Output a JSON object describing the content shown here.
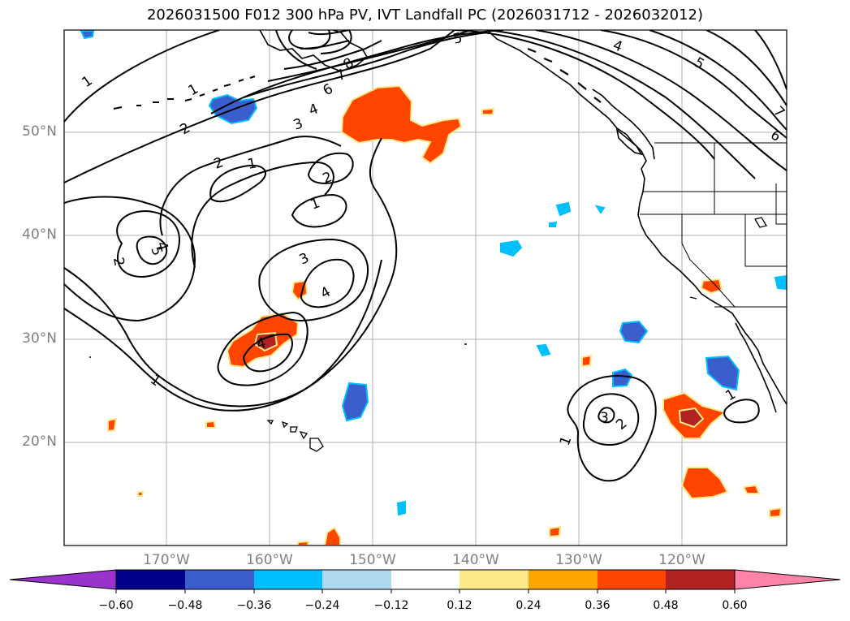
{
  "title": "2026031500 F012 300 hPa PV, IVT Landfall PC (2026031712 - 2026032012)",
  "latitude_labels": [
    "50°N",
    "40°N",
    "30°N",
    "20°N"
  ],
  "longitude_labels": [
    "170°W",
    "160°W",
    "150°W",
    "140°W",
    "130°W",
    "120°W"
  ],
  "pv_contour_labels": [
    "1",
    "2",
    "1",
    "2",
    "3",
    "4",
    "6",
    "7",
    "8",
    "5",
    "4",
    "5",
    "6",
    "7",
    "2",
    "1",
    "2",
    "1",
    "4",
    "5",
    "3",
    "4",
    "4",
    "1",
    "3",
    "2",
    "1",
    "1"
  ],
  "colorbar": {
    "tick_labels": [
      "−0.60",
      "−0.48",
      "−0.36",
      "−0.24",
      "−0.12",
      "0.12",
      "0.24",
      "0.36",
      "0.48",
      "0.60"
    ],
    "colors": [
      "#9933cc",
      "#00008b",
      "#3a5fcd",
      "#00bfff",
      "#add8f0",
      "#ffffff",
      "#fde98a",
      "#ffa500",
      "#ff4500",
      "#b22222",
      "#ff82a9"
    ]
  },
  "shading_colors": {
    "negative_light": "#00bfff",
    "negative_mid": "#3a5fcd",
    "positive_light": "#fde98a",
    "positive_mid": "#ff4500",
    "positive_dark": "#b22222"
  }
}
